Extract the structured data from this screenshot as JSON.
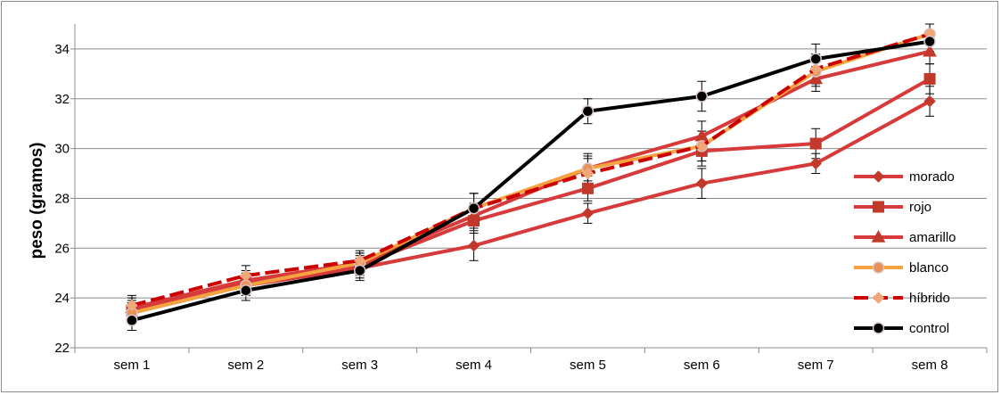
{
  "chart_data": {
    "type": "line",
    "title": "",
    "xlabel": "",
    "ylabel": "peso (gramos)",
    "ylim": [
      22,
      35
    ],
    "yticks": [
      22,
      24,
      26,
      28,
      30,
      32,
      34
    ],
    "grid": "horizontal",
    "legend_position": "right",
    "categories": [
      "sem 1",
      "sem 2",
      "sem 3",
      "sem 4",
      "sem 5",
      "sem 6",
      "sem 7",
      "sem 8"
    ],
    "series": [
      {
        "name": "morado",
        "values": [
          23.4,
          24.5,
          25.2,
          26.1,
          27.4,
          28.6,
          29.4,
          31.9
        ],
        "error": [
          0.4,
          0.4,
          0.4,
          0.6,
          0.4,
          0.6,
          0.4,
          0.6
        ],
        "color": "#d63a3a",
        "marker": "diamond",
        "dash": false,
        "marker_color": "#c0392b"
      },
      {
        "name": "rojo",
        "values": [
          23.5,
          24.6,
          25.3,
          27.1,
          28.4,
          29.9,
          30.2,
          32.8
        ],
        "error": [
          0.4,
          0.4,
          0.4,
          0.5,
          0.5,
          0.6,
          0.6,
          0.6
        ],
        "color": "#d63a3a",
        "marker": "square",
        "dash": false,
        "marker_color": "#c0392b"
      },
      {
        "name": "amarillo",
        "values": [
          23.6,
          24.7,
          25.4,
          27.3,
          29.2,
          30.5,
          32.8,
          33.9
        ],
        "error": [
          0.4,
          0.4,
          0.4,
          0.5,
          0.5,
          0.6,
          0.5,
          0.5
        ],
        "color": "#d63a3a",
        "marker": "triangle",
        "dash": false,
        "marker_color": "#c0392b"
      },
      {
        "name": "blanco",
        "values": [
          23.4,
          24.5,
          25.4,
          27.6,
          29.2,
          30.1,
          33.1,
          34.6
        ],
        "error": [
          0.4,
          0.4,
          0.4,
          0.6,
          0.6,
          0.6,
          0.6,
          0.4
        ],
        "color": "#f4a340",
        "marker": "circle",
        "dash": false,
        "marker_color": "#e8925a"
      },
      {
        "name": "híbrido",
        "values": [
          23.7,
          24.9,
          25.5,
          27.6,
          29.0,
          30.1,
          33.2,
          34.6
        ],
        "error": [
          0.4,
          0.4,
          0.4,
          0.6,
          0.6,
          0.6,
          0.6,
          0.4
        ],
        "color": "#cc0000",
        "marker": "diamond",
        "dash": true,
        "marker_color": "#f0a878"
      },
      {
        "name": "control",
        "values": [
          23.1,
          24.3,
          25.1,
          27.6,
          31.5,
          32.1,
          33.6,
          34.3
        ],
        "error": [
          0.4,
          0.4,
          0.4,
          0.6,
          0.5,
          0.6,
          0.6,
          0.4
        ],
        "color": "#000000",
        "marker": "circle",
        "dash": false,
        "marker_color": "#000000"
      }
    ]
  }
}
